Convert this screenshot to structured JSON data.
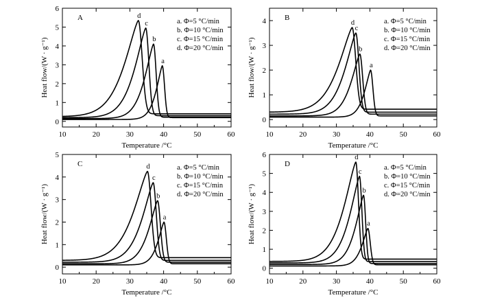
{
  "chart_data": [
    {
      "type": "line",
      "panel_label": "A",
      "xlabel": "Temperature /°C",
      "ylabel": "Heat flow/(W · g⁻¹)",
      "xlim": [
        10,
        60
      ],
      "ylim": [
        -0.3,
        6
      ],
      "xticks": [
        "10",
        "20",
        "30",
        "40",
        "50",
        "60"
      ],
      "yticks": [
        "0",
        "1",
        "2",
        "3",
        "4",
        "5",
        "6"
      ],
      "legend": [
        "a.  Φ=5 °C/min",
        "b.  Φ=10 °C/min",
        "c.  Φ=15 °C/min",
        "d.  Φ=20 °C/min"
      ],
      "legend_position": "top-right",
      "series": [
        {
          "name": "a",
          "peak_x": 39.6,
          "peak_y": 2.95,
          "baseline": 0.1,
          "end": 0.2,
          "rise_width": 2.6,
          "fall_width": 0.95
        },
        {
          "name": "b",
          "peak_x": 37.0,
          "peak_y": 4.1,
          "baseline": 0.15,
          "end": 0.22,
          "rise_width": 3.8,
          "fall_width": 1.1
        },
        {
          "name": "c",
          "peak_x": 34.7,
          "peak_y": 4.95,
          "baseline": 0.2,
          "end": 0.3,
          "rise_width": 4.8,
          "fall_width": 1.3
        },
        {
          "name": "d",
          "peak_x": 32.5,
          "peak_y": 5.35,
          "baseline": 0.25,
          "end": 0.4,
          "rise_width": 6.0,
          "fall_width": 1.6
        }
      ]
    },
    {
      "type": "line",
      "panel_label": "B",
      "xlabel": "Temperature /°C",
      "ylabel": "Heat flow/(W · g⁻¹)",
      "xlim": [
        10,
        60
      ],
      "ylim": [
        -0.3,
        4.5
      ],
      "xticks": [
        "10",
        "20",
        "30",
        "40",
        "50",
        "60"
      ],
      "yticks": [
        "0",
        "1",
        "2",
        "3",
        "4"
      ],
      "legend": [
        "a.  Φ=5 °C/min",
        "b.  Φ=10 °C/min",
        "c.  Φ=15 °C/min",
        "d.  Φ=20 °C/min"
      ],
      "legend_position": "top-right",
      "series": [
        {
          "name": "a",
          "peak_x": 40.2,
          "peak_y": 2.0,
          "baseline": 0.1,
          "end": 0.15,
          "rise_width": 2.6,
          "fall_width": 1.0
        },
        {
          "name": "b",
          "peak_x": 37.0,
          "peak_y": 2.65,
          "baseline": 0.15,
          "end": 0.22,
          "rise_width": 3.8,
          "fall_width": 1.2
        },
        {
          "name": "c",
          "peak_x": 35.8,
          "peak_y": 3.5,
          "baseline": 0.22,
          "end": 0.3,
          "rise_width": 4.8,
          "fall_width": 1.3
        },
        {
          "name": "d",
          "peak_x": 34.7,
          "peak_y": 3.72,
          "baseline": 0.3,
          "end": 0.42,
          "rise_width": 6.0,
          "fall_width": 1.5
        }
      ]
    },
    {
      "type": "line",
      "panel_label": "C",
      "xlabel": "Temperature /°C",
      "ylabel": "Heat flow/(W · g⁻¹)",
      "xlim": [
        10,
        60
      ],
      "ylim": [
        -0.3,
        5
      ],
      "xticks": [
        "10",
        "20",
        "30",
        "40",
        "50",
        "60"
      ],
      "yticks": [
        "0",
        "1",
        "2",
        "3",
        "4",
        "5"
      ],
      "legend": [
        "a.  Φ=5 °C/min",
        "b.  Φ=10 °C/min",
        "c.  Φ=15 °C/min",
        "d.  Φ=20 °C/min"
      ],
      "legend_position": "top-right",
      "series": [
        {
          "name": "a",
          "peak_x": 40.1,
          "peak_y": 2.0,
          "baseline": 0.1,
          "end": 0.15,
          "rise_width": 2.6,
          "fall_width": 1.0
        },
        {
          "name": "b",
          "peak_x": 38.2,
          "peak_y": 2.95,
          "baseline": 0.15,
          "end": 0.22,
          "rise_width": 3.8,
          "fall_width": 1.2
        },
        {
          "name": "c",
          "peak_x": 36.9,
          "peak_y": 3.75,
          "baseline": 0.22,
          "end": 0.3,
          "rise_width": 4.8,
          "fall_width": 1.3
        },
        {
          "name": "d",
          "peak_x": 35.2,
          "peak_y": 4.25,
          "baseline": 0.3,
          "end": 0.42,
          "rise_width": 6.0,
          "fall_width": 1.5
        }
      ]
    },
    {
      "type": "line",
      "panel_label": "D",
      "xlabel": "Temperature /°C",
      "ylabel": "Heat flow/(W · g⁻¹)",
      "xlim": [
        10,
        60
      ],
      "ylim": [
        -0.3,
        6
      ],
      "xticks": [
        "10",
        "20",
        "30",
        "40",
        "50",
        "60"
      ],
      "yticks": [
        "0",
        "1",
        "2",
        "3",
        "4",
        "5",
        "6"
      ],
      "legend": [
        "a.  Φ=5 °C/min",
        "b.  Φ=10 °C/min",
        "c.  Φ=15 °C/min",
        "d.  Φ=20 °C/min"
      ],
      "legend_position": "top-right",
      "series": [
        {
          "name": "a",
          "peak_x": 39.4,
          "peak_y": 2.1,
          "baseline": 0.12,
          "end": 0.18,
          "rise_width": 2.6,
          "fall_width": 1.0
        },
        {
          "name": "b",
          "peak_x": 38.1,
          "peak_y": 3.85,
          "baseline": 0.2,
          "end": 0.25,
          "rise_width": 3.5,
          "fall_width": 0.9
        },
        {
          "name": "c",
          "peak_x": 36.9,
          "peak_y": 4.85,
          "baseline": 0.28,
          "end": 0.35,
          "rise_width": 4.3,
          "fall_width": 1.0
        },
        {
          "name": "d",
          "peak_x": 35.8,
          "peak_y": 5.6,
          "baseline": 0.36,
          "end": 0.48,
          "rise_width": 5.2,
          "fall_width": 1.1
        }
      ]
    }
  ]
}
